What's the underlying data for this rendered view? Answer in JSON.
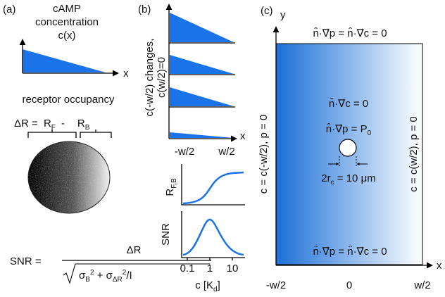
{
  "panel_a": {
    "label": "(a)",
    "concentration_title": [
      "cAMP",
      "concentration",
      "c(x)"
    ],
    "x_axis": "x",
    "occupancy_title": "receptor occupancy",
    "delta_r_equation": {
      "lhs": "ΔR = ",
      "term_f": "R",
      "term_f_sub": "F",
      "minus": "-",
      "term_b": "R",
      "term_b_sub": "B"
    },
    "snr_equation": {
      "lhs": "SNR =",
      "numerator": "ΔR",
      "denominator": [
        "σ",
        "B",
        "2",
        " + σ",
        "ΔR",
        "2",
        "/I"
      ]
    }
  },
  "panel_b": {
    "label": "(b)",
    "y_axis_lines": [
      "c(-w/2) changes,",
      "c(w/2)=0"
    ],
    "x_axis": "x",
    "x_ticks": [
      "-w/2",
      "w/2"
    ],
    "occupancy_axis": {
      "main": "R",
      "sub": "F,B"
    },
    "snr_axis": "SNR",
    "c_ticks": [
      "0.1",
      "1",
      "10"
    ],
    "c_axis": {
      "main": "c [K",
      "sub": "d",
      "end": "]"
    }
  },
  "panel_c": {
    "label": "(c)",
    "y_axis": "y",
    "x_axis": "x",
    "top_boundary": "n̂·∇⃗p = n̂·∇⃗c = 0",
    "bottom_boundary": "n̂·∇⃗p = n̂·∇⃗c = 0",
    "left_boundary": "c = c(-w/2),  p = 0",
    "right_boundary": "c = c(w/2),  p = 0",
    "cell_condition_c": "n̂·∇⃗c = 0",
    "cell_condition_p": {
      "main": "n̂·∇⃗p = P",
      "sub": "0"
    },
    "cell_size": {
      "main": "2r",
      "sub": "c",
      "end": " = 10 μm"
    },
    "x_ticks": [
      "-w/2",
      "0",
      "w/2"
    ]
  }
}
